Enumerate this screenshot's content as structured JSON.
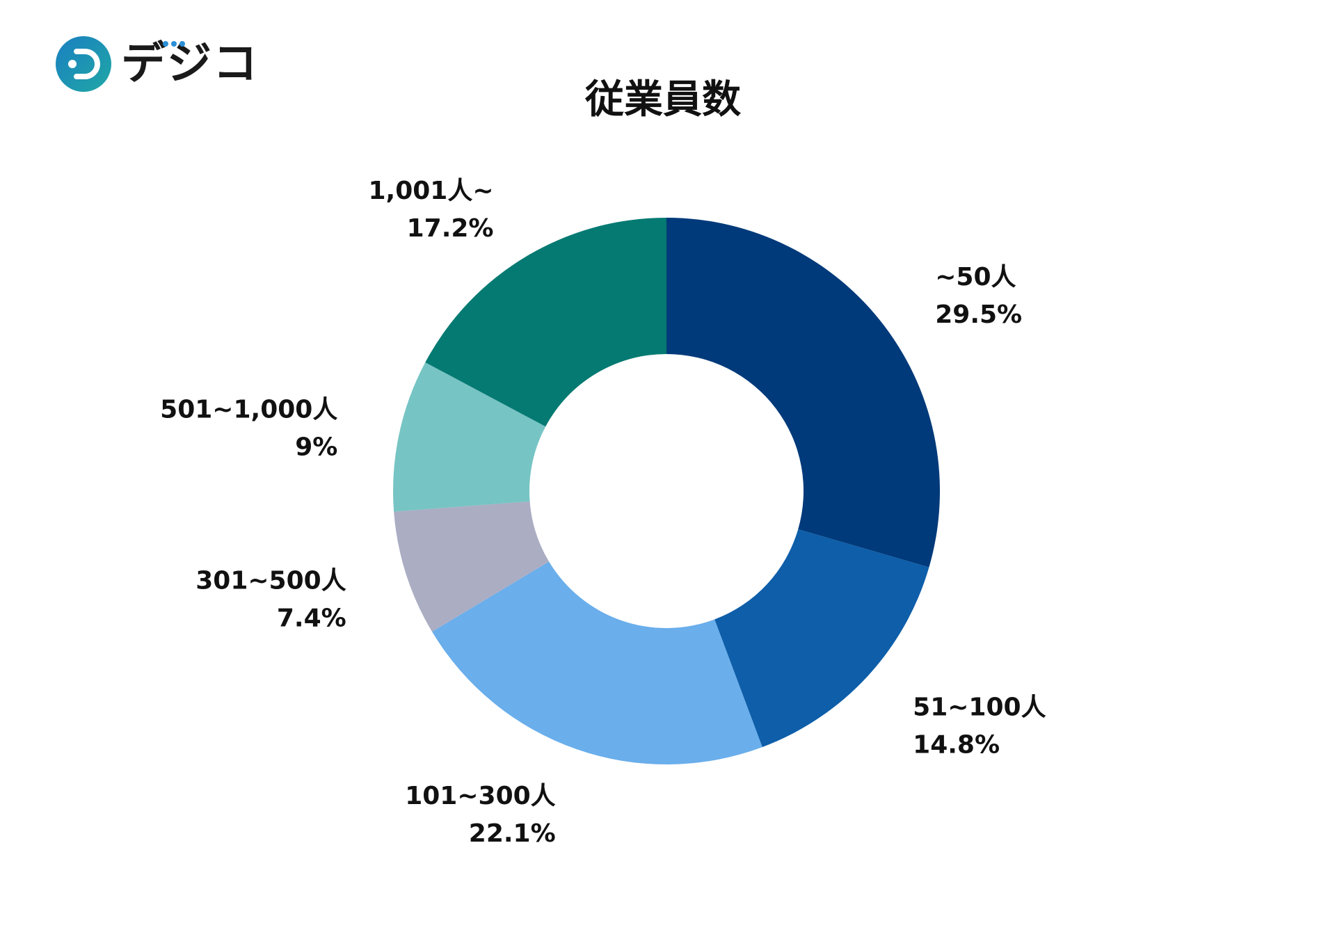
{
  "logo": {
    "text": "デジコ",
    "colors": {
      "mark_start": "#1a7fc1",
      "mark_end": "#20a8a5",
      "dots": "#2a8fd6"
    }
  },
  "chart_data": {
    "type": "pie",
    "variant": "donut",
    "title": "従業員数",
    "start_angle_deg": 0,
    "direction": "clockwise",
    "slices": [
      {
        "label": "~50人",
        "value": 29.5,
        "display": "29.5%",
        "color": "#003a7a"
      },
      {
        "label": "51~100人",
        "value": 14.8,
        "display": "14.8%",
        "color": "#0e5ea9"
      },
      {
        "label": "101~300人",
        "value": 22.1,
        "display": "22.1%",
        "color": "#6aaeeb"
      },
      {
        "label": "301~500人",
        "value": 7.4,
        "display": "7.4%",
        "color": "#abadc3"
      },
      {
        "label": "501~1,000人",
        "value": 9,
        "display": "9%",
        "color": "#77c4c4"
      },
      {
        "label": "1,001人~",
        "value": 17.2,
        "display": "17.2%",
        "color": "#057a72"
      }
    ],
    "legend": "none"
  }
}
